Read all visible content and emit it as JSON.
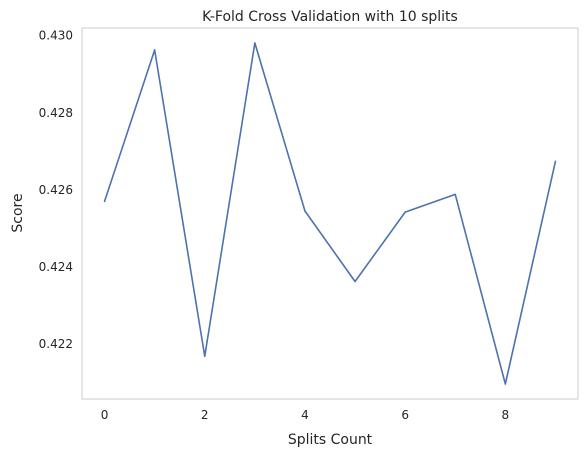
{
  "chart_data": {
    "type": "line",
    "title": "K-Fold Cross Validation with 10 splits",
    "xlabel": "Splits Count",
    "ylabel": "Score",
    "x": [
      0,
      1,
      2,
      3,
      4,
      5,
      6,
      7,
      8,
      9
    ],
    "series": [
      {
        "values": [
          0.4257,
          0.42963,
          0.42168,
          0.42981,
          0.42545,
          0.42362,
          0.42542,
          0.42588,
          0.42096,
          0.42674
        ]
      }
    ],
    "xlim": [
      -0.45,
      9.45
    ],
    "ylim": [
      0.42057,
      0.4302
    ],
    "xticks": [
      0,
      2,
      4,
      6,
      8
    ],
    "yticks": [
      0.422,
      0.424,
      0.426,
      0.428,
      0.43
    ],
    "ytick_labels": [
      "0.422",
      "0.424",
      "0.426",
      "0.428",
      "0.430"
    ],
    "grid": false,
    "line_color": "#4c72b0",
    "axes_edge_color": "#cccccc"
  }
}
